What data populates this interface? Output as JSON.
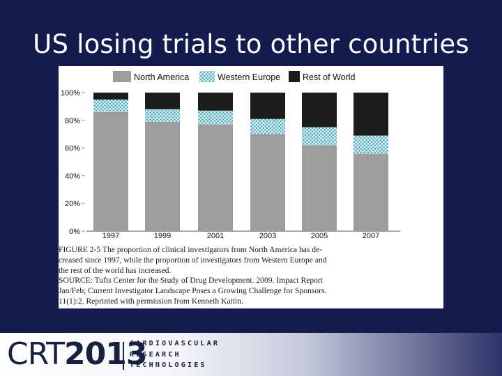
{
  "slide": {
    "title": "US losing trials to other countries"
  },
  "colors": {
    "background": "#141c4e",
    "north_america": "#9d9d9d",
    "western_europe": "#7ec6d0",
    "rest_of_world": "#1c1c1c"
  },
  "chart_data": {
    "type": "bar",
    "stacked": true,
    "categories": [
      "1997",
      "1999",
      "2001",
      "2003",
      "2005",
      "2007"
    ],
    "series": [
      {
        "name": "North America",
        "values": [
          86,
          79,
          77,
          70,
          62,
          56
        ]
      },
      {
        "name": "Western Europe",
        "values": [
          9,
          9,
          10,
          11,
          13,
          13
        ]
      },
      {
        "name": "Rest of World",
        "values": [
          5,
          12,
          13,
          19,
          25,
          31
        ]
      }
    ],
    "y_ticks": [
      "0%",
      "20%",
      "40%",
      "60%",
      "80%",
      "100%"
    ],
    "ylim": [
      0,
      100
    ],
    "legend_position": "top",
    "grid": false
  },
  "caption": {
    "line1": "FIGURE 2-5 The proportion of clinical investigators from North America has de-",
    "line2": "creased since 1997, while the proportion of investigators from Western Europe and",
    "line3": "the rest of the world has increased.",
    "line4": "SOURCE: Tufts Center for the Study of Drug Development. 2009. Impact Report",
    "line5": "Jan/Feb; Current Investigator Landscape Poses a Growing Challenge for Sponsors.",
    "line6": "11(1):2. Reprinted with permission from Kenneth Kaitin."
  },
  "logo": {
    "crt": "CRT",
    "year": "2013",
    "word1": "CARDIOVASCULAR",
    "word2": "RESEARCH",
    "word3": "TECHNOLOGIES"
  }
}
